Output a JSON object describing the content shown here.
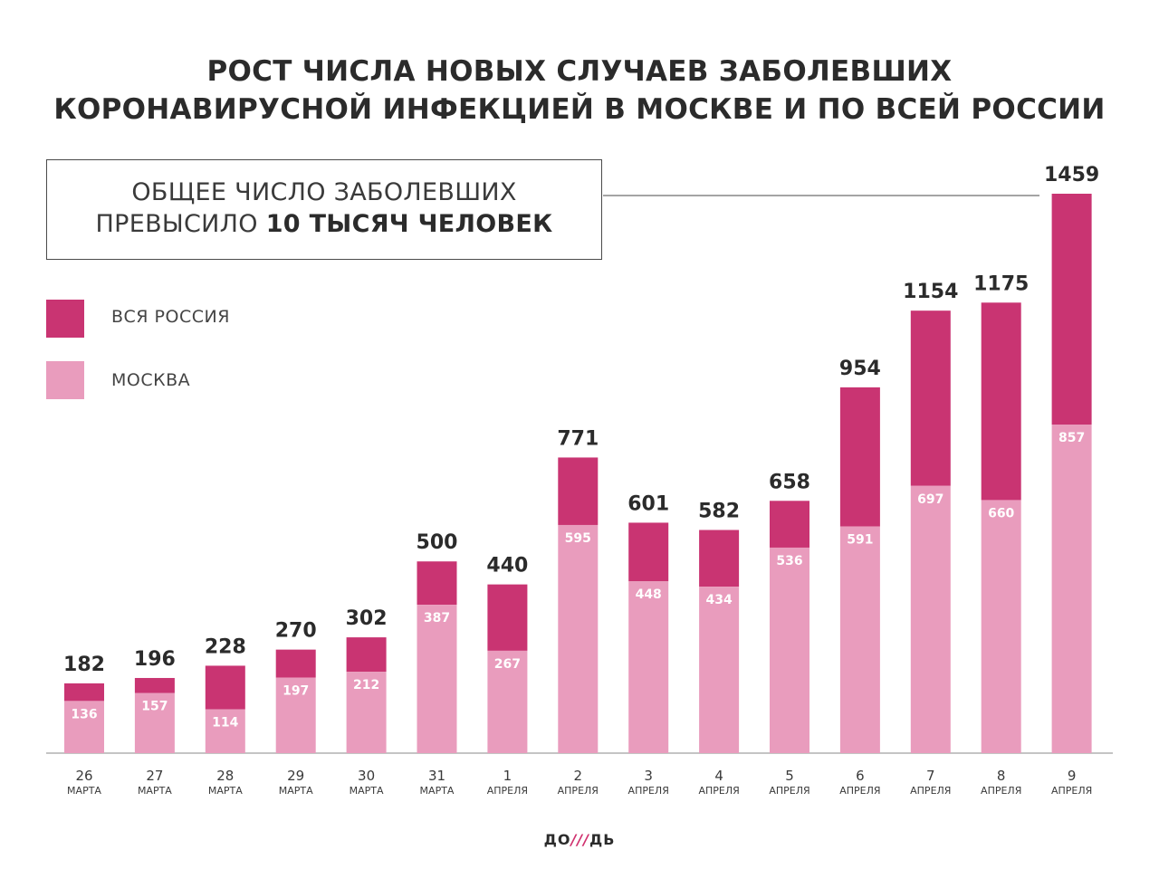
{
  "title": {
    "line1": "РОСТ ЧИСЛА НОВЫХ СЛУЧАЕВ ЗАБОЛЕВШИХ",
    "line2": "КОРОНАВИРУСНОЙ ИНФЕКЦИЕЙ В МОСКВЕ И ПО ВСЕЙ РОССИИ"
  },
  "callout": {
    "line1": "ОБЩЕЕ ЧИСЛО ЗАБОЛЕВШИХ",
    "line2_normal": "ПРЕВЫСИЛО",
    "line2_bold": "10 ТЫСЯЧ ЧЕЛОВЕК"
  },
  "logo": {
    "left": "ДО",
    "slashes": "///",
    "right": "ДЬ"
  },
  "colors": {
    "russia": "#c93472",
    "moscow": "#e99cbd",
    "text": "#2b2b2b"
  },
  "chart_data": {
    "type": "bar",
    "stacked": true,
    "categories": [
      {
        "day": "26",
        "month": "МАРТА"
      },
      {
        "day": "27",
        "month": "МАРТА"
      },
      {
        "day": "28",
        "month": "МАРТА"
      },
      {
        "day": "29",
        "month": "МАРТА"
      },
      {
        "day": "30",
        "month": "МАРТА"
      },
      {
        "day": "31",
        "month": "МАРТА"
      },
      {
        "day": "1",
        "month": "АПРЕЛЯ"
      },
      {
        "day": "2",
        "month": "АПРЕЛЯ"
      },
      {
        "day": "3",
        "month": "АПРЕЛЯ"
      },
      {
        "day": "4",
        "month": "АПРЕЛЯ"
      },
      {
        "day": "5",
        "month": "АПРЕЛЯ"
      },
      {
        "day": "6",
        "month": "АПРЕЛЯ"
      },
      {
        "day": "7",
        "month": "АПРЕЛЯ"
      },
      {
        "day": "8",
        "month": "АПРЕЛЯ"
      },
      {
        "day": "9",
        "month": "АПРЕЛЯ"
      }
    ],
    "series": [
      {
        "name": "ВСЯ РОССИЯ",
        "values": [
          182,
          196,
          228,
          270,
          302,
          500,
          440,
          771,
          601,
          582,
          658,
          954,
          1154,
          1175,
          1459
        ]
      },
      {
        "name": "МОСКВА",
        "values": [
          136,
          157,
          114,
          197,
          212,
          387,
          267,
          595,
          448,
          434,
          536,
          591,
          697,
          660,
          857
        ]
      }
    ],
    "legend": "top-left",
    "grid": false
  }
}
